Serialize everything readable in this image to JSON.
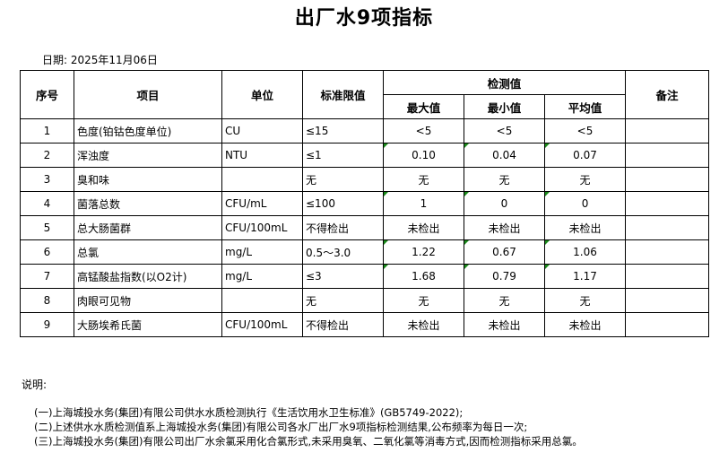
{
  "title": "出厂水9项指标",
  "date": "日期: 2025年11月06日",
  "headers": {
    "seq": "序号",
    "item": "项目",
    "unit": "单位",
    "limit": "标准限值",
    "detected": "检测值",
    "max": "最大值",
    "min": "最小值",
    "avg": "平均值",
    "remark": "备注"
  },
  "rows": [
    {
      "seq": "1",
      "item": "色度(铂钴色度单位)",
      "unit": "CU",
      "limit": "≤15",
      "max": "<5",
      "min": "<5",
      "avg": "<5",
      "remark": "",
      "flag": false
    },
    {
      "seq": "2",
      "item": "浑浊度",
      "unit": "NTU",
      "limit": "≤1",
      "max": "0.10",
      "min": "0.04",
      "avg": "0.07",
      "remark": "",
      "flag": true
    },
    {
      "seq": "3",
      "item": "臭和味",
      "unit": "",
      "limit": "无",
      "max": "无",
      "min": "无",
      "avg": "无",
      "remark": "",
      "flag": false
    },
    {
      "seq": "4",
      "item": "菌落总数",
      "unit": "CFU/mL",
      "limit": "≤100",
      "max": "1",
      "min": "0",
      "avg": "0",
      "remark": "",
      "flag": true
    },
    {
      "seq": "5",
      "item": "总大肠菌群",
      "unit": "CFU/100mL",
      "limit": "不得检出",
      "max": "未检出",
      "min": "未检出",
      "avg": "未检出",
      "remark": "",
      "flag": false
    },
    {
      "seq": "6",
      "item": "总氯",
      "unit": "mg/L",
      "limit": "0.5～3.0",
      "max": "1.22",
      "min": "0.67",
      "avg": "1.06",
      "remark": "",
      "flag": true
    },
    {
      "seq": "7",
      "item": "高锰酸盐指数(以O2计)",
      "unit": "mg/L",
      "limit": "≤3",
      "max": "1.68",
      "min": "0.79",
      "avg": "1.17",
      "remark": "",
      "flag": true
    },
    {
      "seq": "8",
      "item": "肉眼可见物",
      "unit": "",
      "limit": "无",
      "max": "无",
      "min": "无",
      "avg": "无",
      "remark": "",
      "flag": false
    },
    {
      "seq": "9",
      "item": "大肠埃希氏菌",
      "unit": "CFU/100mL",
      "limit": "不得检出",
      "max": "未检出",
      "min": "未检出",
      "avg": "未检出",
      "remark": "",
      "flag": false
    }
  ],
  "notes_label": "说明:",
  "notes": [
    "(一)上海城投水务(集团)有限公司供水水质检测执行《生活饮用水卫生标准》(GB5749-2022);",
    "(二)上述供水水质检测值系上海城投水务(集团)有限公司各水厂出厂水9项指标检测结果,公布频率为每日一次;",
    "(三)上海城投水务(集团)有限公司出厂水余氯采用化合氯形式,未采用臭氧、二氧化氯等消毒方式,因而检测指标采用总氯。"
  ],
  "colors": {
    "flag": "#1a8a1a"
  }
}
